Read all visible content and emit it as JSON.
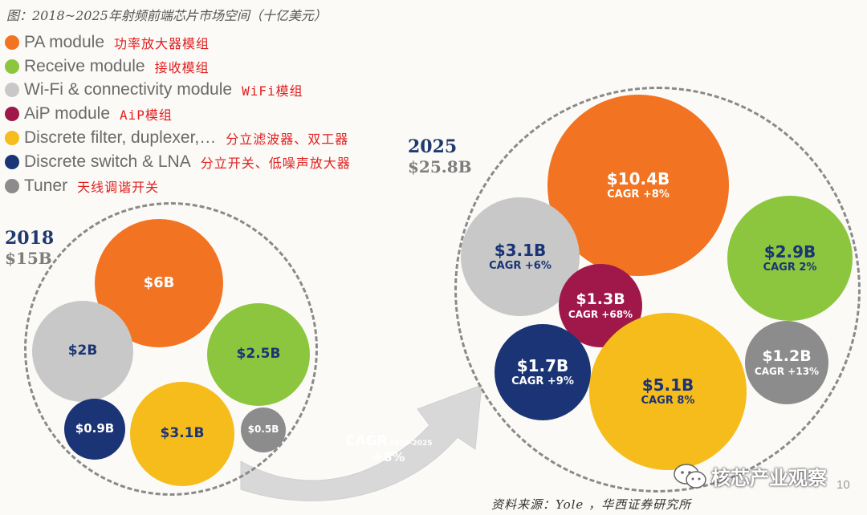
{
  "caption": "图：2018~2025年射频前端芯片市场空间（十亿美元）",
  "legend": [
    {
      "en": "PA module",
      "zh": "功率放大器模组",
      "color": "#f27321"
    },
    {
      "en": "Receive module",
      "zh": "接收模组",
      "color": "#8cc63f"
    },
    {
      "en": "Wi-Fi & connectivity module",
      "zh": "WiFi模组",
      "color": "#c8c8c8"
    },
    {
      "en": "AiP module",
      "zh": "AiP模组",
      "color": "#a0184a"
    },
    {
      "en": "Discrete filter, duplexer,…",
      "zh": "分立滤波器、双工器",
      "color": "#f5bc1c"
    },
    {
      "en": "Discrete switch & LNA",
      "zh": "分立开关、低噪声放大器",
      "color": "#1b3475"
    },
    {
      "en": "Tuner",
      "zh": "天线调谐开关",
      "color": "#8c8c8c"
    }
  ],
  "year2018": {
    "year": "2018",
    "total": "$15B"
  },
  "year2025": {
    "year": "2025",
    "total": "$25.8B"
  },
  "bubbles2018": [
    {
      "id": "pa",
      "value": "$6B",
      "color": "#f27321",
      "text_color": "#ffffff"
    },
    {
      "id": "wifi",
      "value": "$2B",
      "color": "#c8c8c8",
      "text_color": "#1b3475"
    },
    {
      "id": "receive",
      "value": "$2.5B",
      "color": "#8cc63f",
      "text_color": "#1b3475"
    },
    {
      "id": "switch",
      "value": "$0.9B",
      "color": "#1b3475",
      "text_color": "#ffffff"
    },
    {
      "id": "filter",
      "value": "$3.1B",
      "color": "#f5bc1c",
      "text_color": "#1b3475"
    },
    {
      "id": "tuner",
      "value": "$0.5B",
      "color": "#8c8c8c",
      "text_color": "#ffffff"
    }
  ],
  "bubbles2025": [
    {
      "id": "pa",
      "value": "$10.4B",
      "cagr": "CAGR +8%",
      "color": "#f27321",
      "text_color": "#ffffff"
    },
    {
      "id": "wifi",
      "value": "$3.1B",
      "cagr": "CAGR +6%",
      "color": "#c8c8c8",
      "text_color": "#1b3475"
    },
    {
      "id": "receive",
      "value": "$2.9B",
      "cagr": "CAGR 2%",
      "color": "#8cc63f",
      "text_color": "#1b3475"
    },
    {
      "id": "aip",
      "value": "$1.3B",
      "cagr": "CAGR +68%",
      "color": "#a0184a",
      "text_color": "#ffffff"
    },
    {
      "id": "switch",
      "value": "$1.7B",
      "cagr": "CAGR +9%",
      "color": "#1b3475",
      "text_color": "#ffffff"
    },
    {
      "id": "filter",
      "value": "$5.1B",
      "cagr": "CAGR 8%",
      "color": "#f5bc1c",
      "text_color": "#1b3475"
    },
    {
      "id": "tuner",
      "value": "$1.2B",
      "cagr": "CAGR +13%",
      "color": "#8c8c8c",
      "text_color": "#ffffff"
    }
  ],
  "arrow": {
    "label": "CAGR",
    "period": "2018-2025",
    "value": "+8%",
    "color": "#d8d8d8"
  },
  "source": "资料来源：Yole ，华西证券研究所",
  "watermark": "核芯产业观察",
  "page_number": "10"
}
